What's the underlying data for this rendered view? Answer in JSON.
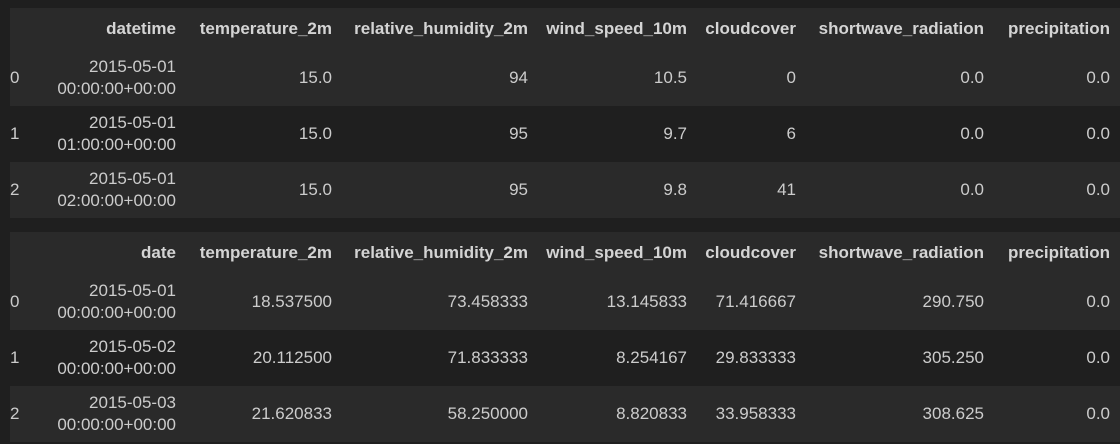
{
  "table1": {
    "columns": [
      "",
      "datetime",
      "temperature_2m",
      "relative_humidity_2m",
      "wind_speed_10m",
      "cloudcover",
      "shortwave_radiation",
      "precipitation"
    ],
    "rows": [
      {
        "index": "0",
        "date_line1": "2015-05-01",
        "date_line2": "00:00:00+00:00",
        "temperature_2m": "15.0",
        "relative_humidity_2m": "94",
        "wind_speed_10m": "10.5",
        "cloudcover": "0",
        "shortwave_radiation": "0.0",
        "precipitation": "0.0"
      },
      {
        "index": "1",
        "date_line1": "2015-05-01",
        "date_line2": "01:00:00+00:00",
        "temperature_2m": "15.0",
        "relative_humidity_2m": "95",
        "wind_speed_10m": "9.7",
        "cloudcover": "6",
        "shortwave_radiation": "0.0",
        "precipitation": "0.0"
      },
      {
        "index": "2",
        "date_line1": "2015-05-01",
        "date_line2": "02:00:00+00:00",
        "temperature_2m": "15.0",
        "relative_humidity_2m": "95",
        "wind_speed_10m": "9.8",
        "cloudcover": "41",
        "shortwave_radiation": "0.0",
        "precipitation": "0.0"
      }
    ]
  },
  "table2": {
    "columns": [
      "",
      "date",
      "temperature_2m",
      "relative_humidity_2m",
      "wind_speed_10m",
      "cloudcover",
      "shortwave_radiation",
      "precipitation"
    ],
    "rows": [
      {
        "index": "0",
        "date_line1": "2015-05-01",
        "date_line2": "00:00:00+00:00",
        "temperature_2m": "18.537500",
        "relative_humidity_2m": "73.458333",
        "wind_speed_10m": "13.145833",
        "cloudcover": "71.416667",
        "shortwave_radiation": "290.750",
        "precipitation": "0.0"
      },
      {
        "index": "1",
        "date_line1": "2015-05-02",
        "date_line2": "00:00:00+00:00",
        "temperature_2m": "20.112500",
        "relative_humidity_2m": "71.833333",
        "wind_speed_10m": "8.254167",
        "cloudcover": "29.833333",
        "shortwave_radiation": "305.250",
        "precipitation": "0.0"
      },
      {
        "index": "2",
        "date_line1": "2015-05-03",
        "date_line2": "00:00:00+00:00",
        "temperature_2m": "21.620833",
        "relative_humidity_2m": "58.250000",
        "wind_speed_10m": "8.820833",
        "cloudcover": "33.958333",
        "shortwave_radiation": "308.625",
        "precipitation": "0.0"
      }
    ]
  },
  "colors": {
    "background": "#1f1f1f",
    "header_row": "#2a2a2a",
    "striped_row": "#2a2a2a",
    "text": "#cccccc"
  }
}
